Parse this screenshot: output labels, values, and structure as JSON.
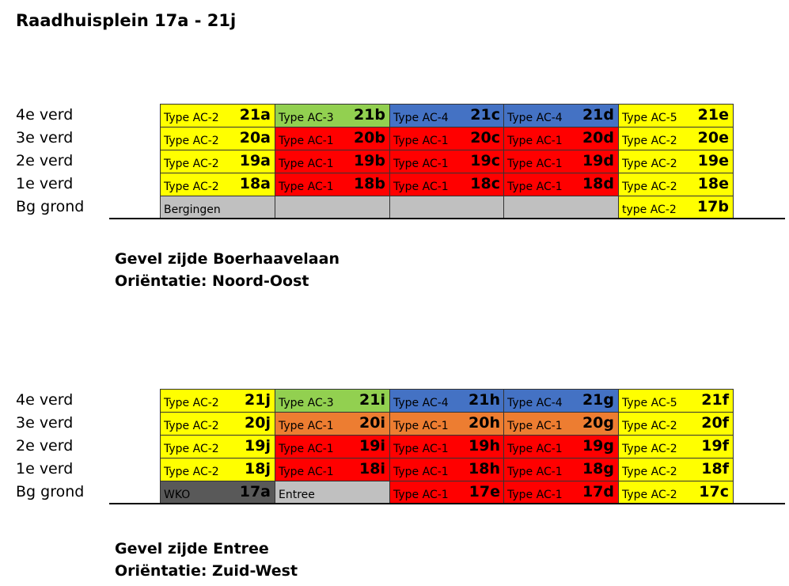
{
  "title": "Raadhuisplein 17a - 21j",
  "sections": [
    {
      "rows": [
        {
          "floor": "4e verd",
          "cells": [
            {
              "type": "Type AC-2",
              "unit": "21a",
              "color": "#ffff00"
            },
            {
              "type": "Type AC-3",
              "unit": "21b",
              "color": "#92d050"
            },
            {
              "type": "Type AC-4",
              "unit": "21c",
              "color": "#4472c4"
            },
            {
              "type": "Type AC-4",
              "unit": "21d",
              "color": "#4472c4"
            },
            {
              "type": "Type AC-5",
              "unit": "21e",
              "color": "#ffff00"
            }
          ]
        },
        {
          "floor": "3e verd",
          "cells": [
            {
              "type": "Type AC-2",
              "unit": "20a",
              "color": "#ffff00"
            },
            {
              "type": "Type AC-1",
              "unit": "20b",
              "color": "#ff0000"
            },
            {
              "type": "Type AC-1",
              "unit": "20c",
              "color": "#ff0000"
            },
            {
              "type": "Type AC-1",
              "unit": "20d",
              "color": "#ff0000"
            },
            {
              "type": "Type AC-2",
              "unit": "20e",
              "color": "#ffff00"
            }
          ]
        },
        {
          "floor": "2e verd",
          "cells": [
            {
              "type": "Type AC-2",
              "unit": "19a",
              "color": "#ffff00"
            },
            {
              "type": "Type AC-1",
              "unit": "19b",
              "color": "#ff0000"
            },
            {
              "type": "Type AC-1",
              "unit": "19c",
              "color": "#ff0000"
            },
            {
              "type": "Type AC-1",
              "unit": "19d",
              "color": "#ff0000"
            },
            {
              "type": "Type AC-2",
              "unit": "19e",
              "color": "#ffff00"
            }
          ]
        },
        {
          "floor": "1e verd",
          "cells": [
            {
              "type": "Type AC-2",
              "unit": "18a",
              "color": "#ffff00"
            },
            {
              "type": "Type AC-1",
              "unit": "18b",
              "color": "#ff0000"
            },
            {
              "type": "Type AC-1",
              "unit": "18c",
              "color": "#ff0000"
            },
            {
              "type": "Type AC-1",
              "unit": "18d",
              "color": "#ff0000"
            },
            {
              "type": "Type AC-2",
              "unit": "18e",
              "color": "#ffff00"
            }
          ]
        },
        {
          "floor": "Bg grond",
          "cells": [
            {
              "type": "Bergingen",
              "color": "#c0c0c0"
            },
            {
              "color": "#c0c0c0"
            },
            {
              "color": "#c0c0c0"
            },
            {
              "color": "#c0c0c0"
            },
            {
              "type": "type AC-2",
              "unit": "17b",
              "color": "#ffff00"
            }
          ]
        }
      ],
      "caption": [
        "Gevel zijde Boerhaavelaan",
        "Oriëntatie: Noord-Oost"
      ]
    },
    {
      "rows": [
        {
          "floor": "4e verd",
          "cells": [
            {
              "type": "Type AC-2",
              "unit": "21j",
              "color": "#ffff00"
            },
            {
              "type": "Type AC-3",
              "unit": "21i",
              "color": "#92d050"
            },
            {
              "type": "Type AC-4",
              "unit": "21h",
              "color": "#4472c4"
            },
            {
              "type": "Type AC-4",
              "unit": "21g",
              "color": "#4472c4"
            },
            {
              "type": "Type AC-5",
              "unit": "21f",
              "color": "#ffff00"
            }
          ]
        },
        {
          "floor": "3e verd",
          "cells": [
            {
              "type": "Type AC-2",
              "unit": "20j",
              "color": "#ffff00"
            },
            {
              "type": "Type AC-1",
              "unit": "20i",
              "color": "#ed7d31"
            },
            {
              "type": "Type AC-1",
              "unit": "20h",
              "color": "#ed7d31"
            },
            {
              "type": "Type AC-1",
              "unit": "20g",
              "color": "#ed7d31"
            },
            {
              "type": "Type AC-2",
              "unit": "20f",
              "color": "#ffff00"
            }
          ]
        },
        {
          "floor": "2e verd",
          "cells": [
            {
              "type": "Type AC-2",
              "unit": "19j",
              "color": "#ffff00"
            },
            {
              "type": "Type AC-1",
              "unit": "19i",
              "color": "#ff0000"
            },
            {
              "type": "Type AC-1",
              "unit": "19h",
              "color": "#ff0000"
            },
            {
              "type": "Type AC-1",
              "unit": "19g",
              "color": "#ff0000"
            },
            {
              "type": "Type AC-2",
              "unit": "19f",
              "color": "#ffff00"
            }
          ]
        },
        {
          "floor": "1e verd",
          "cells": [
            {
              "type": "Type AC-2",
              "unit": "18j",
              "color": "#ffff00"
            },
            {
              "type": "Type AC-1",
              "unit": "18i",
              "color": "#ff0000"
            },
            {
              "type": "Type AC-1",
              "unit": "18h",
              "color": "#ff0000"
            },
            {
              "type": "Type AC-1",
              "unit": "18g",
              "color": "#ff0000"
            },
            {
              "type": "Type AC-2",
              "unit": "18f",
              "color": "#ffff00"
            }
          ]
        },
        {
          "floor": "Bg grond",
          "cells": [
            {
              "type": "WKO",
              "unit": "17a",
              "color": "#595959"
            },
            {
              "type": "Entree",
              "color": "#c0c0c0"
            },
            {
              "type": "Type AC-1",
              "unit": "17e",
              "color": "#ff0000"
            },
            {
              "type": "Type AC-1",
              "unit": "17d",
              "color": "#ff0000"
            },
            {
              "type": "Type AC-2",
              "unit": "17c",
              "color": "#ffff00"
            }
          ]
        }
      ],
      "caption": [
        "Gevel zijde Entree",
        "Oriëntatie: Zuid-West"
      ]
    }
  ]
}
